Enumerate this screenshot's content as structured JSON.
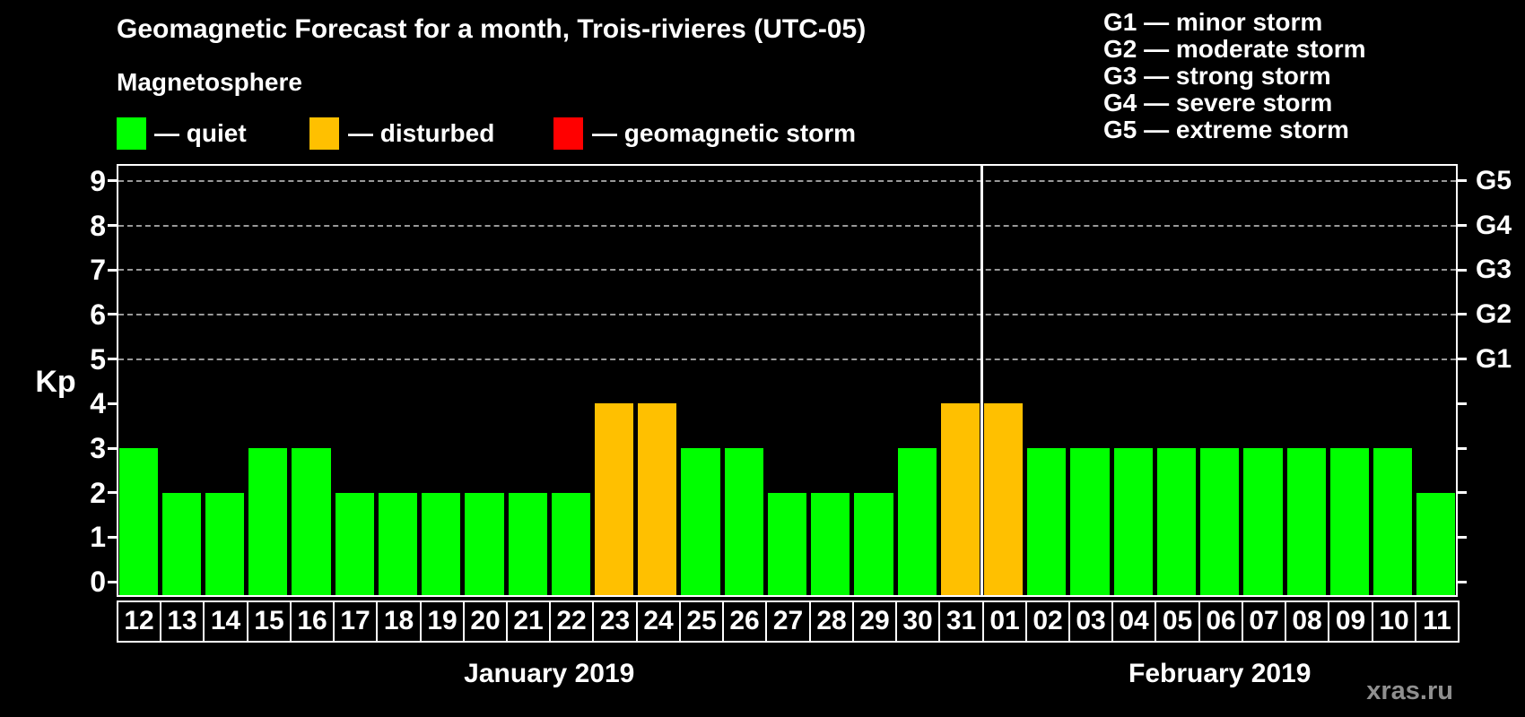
{
  "title": "Geomagnetic Forecast for a month, Trois-rivieres (UTC-05)",
  "legend": {
    "heading": "Magnetosphere",
    "items": [
      {
        "name": "quiet",
        "color": "#00ff00",
        "text": "— quiet"
      },
      {
        "name": "disturbed",
        "color": "#ffc000",
        "text": "— disturbed"
      },
      {
        "name": "storm",
        "color": "#ff0000",
        "text": "— geomagnetic storm"
      }
    ]
  },
  "storm_scale": [
    {
      "text": "G1 — minor storm"
    },
    {
      "text": "G2 — moderate storm"
    },
    {
      "text": "G3 — strong storm"
    },
    {
      "text": "G4 — severe storm"
    },
    {
      "text": "G5 — extreme storm"
    }
  ],
  "chart_data": {
    "type": "bar",
    "title": "Geomagnetic Forecast for a month, Trois-rivieres (UTC-05)",
    "ylabel": "Kp",
    "ylim": [
      0,
      9
    ],
    "yticks": [
      0,
      1,
      2,
      3,
      4,
      5,
      6,
      7,
      8,
      9
    ],
    "gridlines_at": [
      5,
      6,
      7,
      8,
      9
    ],
    "grid_style": "dashed",
    "right_axis_labels": [
      {
        "value": 5,
        "label": "G1"
      },
      {
        "value": 6,
        "label": "G2"
      },
      {
        "value": 7,
        "label": "G3"
      },
      {
        "value": 8,
        "label": "G4"
      },
      {
        "value": 9,
        "label": "G5"
      }
    ],
    "categories": [
      "12",
      "13",
      "14",
      "15",
      "16",
      "17",
      "18",
      "19",
      "20",
      "21",
      "22",
      "23",
      "24",
      "25",
      "26",
      "27",
      "28",
      "29",
      "30",
      "31",
      "01",
      "02",
      "03",
      "04",
      "05",
      "06",
      "07",
      "08",
      "09",
      "10",
      "11"
    ],
    "values": [
      3,
      2,
      2,
      3,
      3,
      2,
      2,
      2,
      2,
      2,
      2,
      4,
      4,
      3,
      3,
      2,
      2,
      2,
      3,
      4,
      4,
      3,
      3,
      3,
      3,
      3,
      3,
      3,
      3,
      3,
      2
    ],
    "statuses": [
      "quiet",
      "quiet",
      "quiet",
      "quiet",
      "quiet",
      "quiet",
      "quiet",
      "quiet",
      "quiet",
      "quiet",
      "quiet",
      "disturbed",
      "disturbed",
      "quiet",
      "quiet",
      "quiet",
      "quiet",
      "quiet",
      "quiet",
      "disturbed",
      "disturbed",
      "quiet",
      "quiet",
      "quiet",
      "quiet",
      "quiet",
      "quiet",
      "quiet",
      "quiet",
      "quiet",
      "quiet"
    ],
    "status_colors": {
      "quiet": "#00ff00",
      "disturbed": "#ffc000",
      "storm": "#ff0000"
    },
    "months": [
      {
        "label": "January 2019",
        "start_index": 0,
        "count": 20
      },
      {
        "label": "February 2019",
        "start_index": 20,
        "count": 11
      }
    ],
    "month_separator_after_index": 19
  },
  "watermark": "xras.ru",
  "colors": {
    "background": "#000000",
    "text": "#ffffff",
    "frame": "#ffffff",
    "gridline": "#999999",
    "watermark": "#8f8f8f"
  }
}
